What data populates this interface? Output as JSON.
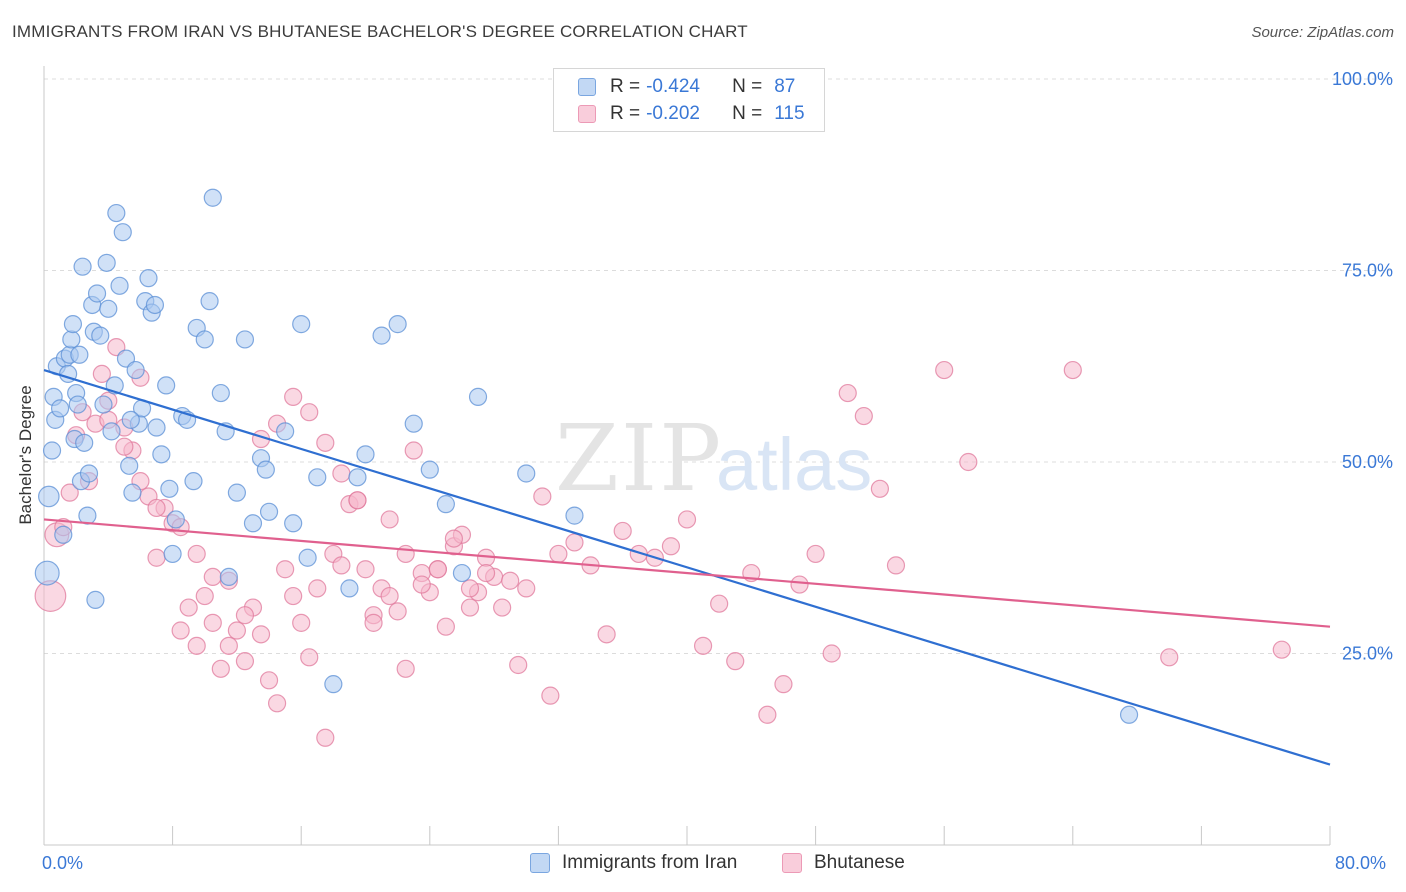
{
  "header": {
    "title": "IMMIGRANTS FROM IRAN VS BHUTANESE BACHELOR'S DEGREE CORRELATION CHART",
    "source": "Source: ZipAtlas.com"
  },
  "watermark": {
    "zip": "ZIP",
    "atlas": "atlas"
  },
  "legend_top": [
    {
      "r_label": "R =",
      "r_value": "-0.424",
      "n_label": "N =",
      "n_value": "87",
      "color": "#a9c8f0"
    },
    {
      "r_label": "R =",
      "r_value": "-0.202",
      "n_label": "N =",
      "n_value": "115",
      "color": "#f6b8cc"
    }
  ],
  "legend_bottom": [
    {
      "label": "Immigrants from Iran",
      "color": "#a9c8f0"
    },
    {
      "label": "Bhutanese",
      "color": "#f6b8cc"
    }
  ],
  "axes": {
    "ylabel": "Bachelor's Degree",
    "x_min_label": "0.0%",
    "x_max_label": "80.0%",
    "y_tick_labels": [
      "100.0%",
      "75.0%",
      "50.0%",
      "25.0%"
    ]
  },
  "colors": {
    "blue_fill": "#a9c8f0",
    "blue_stroke": "#5b8fd6",
    "blue_line": "#2f6fd1",
    "pink_fill": "#f6b8cc",
    "pink_stroke": "#e07a9c",
    "pink_line": "#e0608e",
    "tick_text": "#3a78d6",
    "grid": "#dcdcdc"
  },
  "chart_data": {
    "type": "scatter",
    "title": "IMMIGRANTS FROM IRAN VS BHUTANESE BACHELOR'S DEGREE CORRELATION CHART",
    "xlabel": "",
    "ylabel": "Bachelor's Degree",
    "xlim": [
      0,
      80
    ],
    "ylim": [
      0,
      100
    ],
    "y_ticks": [
      25,
      50,
      75,
      100
    ],
    "grid": true,
    "legend_position": "top-center",
    "series": [
      {
        "name": "Immigrants from Iran",
        "R": -0.424,
        "N": 87,
        "trend": {
          "x": [
            0,
            80
          ],
          "y": [
            62,
            10.5
          ]
        },
        "x": [
          0.2,
          0.3,
          0.5,
          0.6,
          0.7,
          0.8,
          1.0,
          1.2,
          1.3,
          1.5,
          1.6,
          1.7,
          1.8,
          1.9,
          2.0,
          2.1,
          2.2,
          2.3,
          2.4,
          2.5,
          2.7,
          2.8,
          3.0,
          3.1,
          3.3,
          3.5,
          3.7,
          3.9,
          4.0,
          4.2,
          4.4,
          4.5,
          4.7,
          4.9,
          5.1,
          5.3,
          5.5,
          5.7,
          5.9,
          6.1,
          6.3,
          6.5,
          6.7,
          6.9,
          7.0,
          7.3,
          7.6,
          7.8,
          8.0,
          8.2,
          8.6,
          8.9,
          9.3,
          9.5,
          10.0,
          10.3,
          10.5,
          11.0,
          11.3,
          11.5,
          12.0,
          12.5,
          13.0,
          13.5,
          13.8,
          14.0,
          15.0,
          15.5,
          16.0,
          16.4,
          17.0,
          18.0,
          19.0,
          19.5,
          20.0,
          21.0,
          22.0,
          23.0,
          24.0,
          25.0,
          26.0,
          27.0,
          30.0,
          33.0,
          5.4,
          3.2,
          67.5
        ],
        "y": [
          35.5,
          45.5,
          51.5,
          58.5,
          55.5,
          62.5,
          57.0,
          40.5,
          63.5,
          61.5,
          64.0,
          66.0,
          68.0,
          53.0,
          59.0,
          57.5,
          64.0,
          47.5,
          75.5,
          52.5,
          43.0,
          48.5,
          70.5,
          67.0,
          72.0,
          66.5,
          57.5,
          76.0,
          70.0,
          54.0,
          60.0,
          82.5,
          73.0,
          80.0,
          63.5,
          49.5,
          46.0,
          62.0,
          55.0,
          57.0,
          71.0,
          74.0,
          69.5,
          70.5,
          54.5,
          51.0,
          60.0,
          46.5,
          38.0,
          42.5,
          56.0,
          55.5,
          47.5,
          67.5,
          66.0,
          71.0,
          84.5,
          59.0,
          54.0,
          35.0,
          46.0,
          66.0,
          42.0,
          50.5,
          49.0,
          43.5,
          54.0,
          42.0,
          68.0,
          37.5,
          48.0,
          21.0,
          33.5,
          48.0,
          51.0,
          66.5,
          68.0,
          55.0,
          49.0,
          44.5,
          35.5,
          58.5,
          48.5,
          43.0,
          55.5,
          32.0,
          17.0
        ],
        "sizes": [
          14,
          12,
          10,
          10,
          10,
          10,
          10,
          10,
          10,
          10,
          10,
          10,
          10,
          10,
          10,
          10,
          10,
          10,
          10,
          10,
          10,
          10,
          10,
          10,
          10,
          10,
          10,
          10,
          10,
          10,
          10,
          10,
          10,
          10,
          10,
          10,
          10,
          10,
          10,
          10,
          10,
          10,
          10,
          10,
          10,
          10,
          10,
          10,
          10,
          10,
          10,
          10,
          10,
          10,
          10,
          10,
          10,
          10,
          10,
          10,
          10,
          10,
          10,
          10,
          10,
          10,
          10,
          10,
          10,
          10,
          10,
          10,
          10,
          10,
          10,
          10,
          10,
          10,
          10,
          10,
          10,
          10,
          10,
          10,
          10,
          10,
          10
        ]
      },
      {
        "name": "Bhutanese",
        "R": -0.202,
        "N": 115,
        "trend": {
          "x": [
            0,
            80
          ],
          "y": [
            42.5,
            28.5
          ]
        },
        "x": [
          0.4,
          0.8,
          1.2,
          1.6,
          2.0,
          2.4,
          2.8,
          3.2,
          3.6,
          4.0,
          4.5,
          5.0,
          5.5,
          6.0,
          6.5,
          7.0,
          7.5,
          8.0,
          8.5,
          9.0,
          9.5,
          10.0,
          10.5,
          11.0,
          11.5,
          12.0,
          12.5,
          13.0,
          13.5,
          14.0,
          14.5,
          15.0,
          15.5,
          16.0,
          16.5,
          17.0,
          17.5,
          18.0,
          18.5,
          19.0,
          19.5,
          20.0,
          20.5,
          21.0,
          21.5,
          22.0,
          22.5,
          23.0,
          23.5,
          24.0,
          24.5,
          25.0,
          25.5,
          26.0,
          26.5,
          27.0,
          27.5,
          28.0,
          29.0,
          30.0,
          31.0,
          32.0,
          33.0,
          34.0,
          35.0,
          36.0,
          37.0,
          38.0,
          39.0,
          40.0,
          41.0,
          42.0,
          43.0,
          44.0,
          45.0,
          46.0,
          47.0,
          48.0,
          49.0,
          50.0,
          51.0,
          52.0,
          53.0,
          56.0,
          57.5,
          64.0,
          70.0,
          77.0,
          4.0,
          5.0,
          6.0,
          7.0,
          8.5,
          9.5,
          10.5,
          11.5,
          12.5,
          13.5,
          14.5,
          15.5,
          16.5,
          17.5,
          18.5,
          19.5,
          20.5,
          21.5,
          22.5,
          23.5,
          24.5,
          25.5,
          26.5,
          27.5,
          28.5,
          29.5,
          31.5
        ],
        "y": [
          32.5,
          40.5,
          41.5,
          46.0,
          53.5,
          56.5,
          47.5,
          55.0,
          61.5,
          58.0,
          65.0,
          54.5,
          51.5,
          61.0,
          45.5,
          37.5,
          44.0,
          42.0,
          28.0,
          31.0,
          26.0,
          32.5,
          29.0,
          23.0,
          34.5,
          28.0,
          24.0,
          31.0,
          27.5,
          21.5,
          18.5,
          36.0,
          32.5,
          29.0,
          24.5,
          33.5,
          14.0,
          38.0,
          36.5,
          44.5,
          45.0,
          36.0,
          30.0,
          33.5,
          42.5,
          30.5,
          23.0,
          51.5,
          35.5,
          33.0,
          36.0,
          28.5,
          39.0,
          40.5,
          31.0,
          33.0,
          37.5,
          35.0,
          34.5,
          33.5,
          45.5,
          38.0,
          39.5,
          36.5,
          27.5,
          41.0,
          38.0,
          37.5,
          39.0,
          42.5,
          26.0,
          31.5,
          24.0,
          35.5,
          17.0,
          21.0,
          34.0,
          38.0,
          25.0,
          59.0,
          56.0,
          46.5,
          36.5,
          62.0,
          50.0,
          62.0,
          24.5,
          25.5,
          55.5,
          52.0,
          47.5,
          44.0,
          41.5,
          38.0,
          35.0,
          26.0,
          30.0,
          53.0,
          55.0,
          58.5,
          56.5,
          52.5,
          48.5,
          45.0,
          29.0,
          32.5,
          38.0,
          34.0,
          36.0,
          40.0,
          33.5,
          35.5,
          31.0,
          23.5,
          19.5
        ],
        "sizes": [
          18,
          14,
          10,
          10,
          10,
          10,
          10,
          10,
          10,
          10,
          10,
          10,
          10,
          10,
          10,
          10,
          10,
          10,
          10,
          10,
          10,
          10,
          10,
          10,
          10,
          10,
          10,
          10,
          10,
          10,
          10,
          10,
          10,
          10,
          10,
          10,
          10,
          10,
          10,
          10,
          10,
          10,
          10,
          10,
          10,
          10,
          10,
          10,
          10,
          10,
          10,
          10,
          10,
          10,
          10,
          10,
          10,
          10,
          10,
          10,
          10,
          10,
          10,
          10,
          10,
          10,
          10,
          10,
          10,
          10,
          10,
          10,
          10,
          10,
          10,
          10,
          10,
          10,
          10,
          10,
          10,
          10,
          10,
          10,
          10,
          10,
          10,
          10,
          10,
          10,
          10,
          10,
          10,
          10,
          10,
          10,
          10,
          10,
          10,
          10,
          10,
          10,
          10,
          10,
          10,
          10,
          10,
          10,
          10,
          10,
          10,
          10,
          10,
          10,
          10
        ]
      }
    ]
  }
}
